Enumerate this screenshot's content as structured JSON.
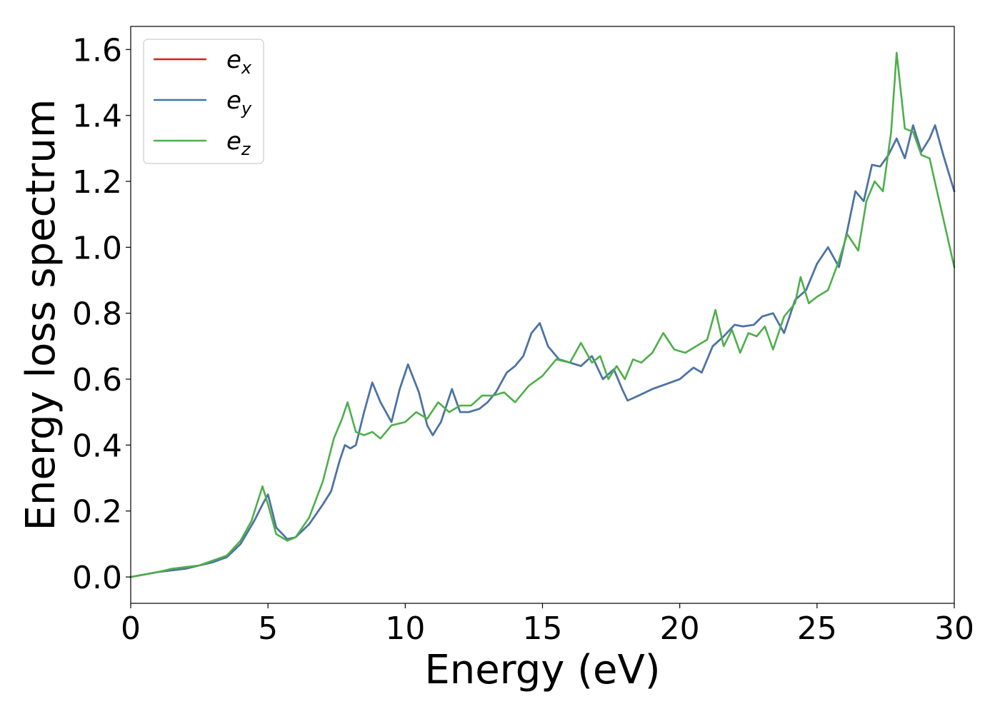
{
  "chart_data": {
    "type": "line",
    "xlabel": "Energy (eV)",
    "ylabel": "Energy loss spectrum",
    "xlim": [
      0,
      30
    ],
    "ylim": [
      -0.08,
      1.67
    ],
    "xticks": [
      0,
      5,
      10,
      15,
      20,
      25,
      30
    ],
    "yticks": [
      0.0,
      0.2,
      0.4,
      0.6,
      0.8,
      1.0,
      1.2,
      1.4,
      1.6
    ],
    "xtick_labels": [
      "0",
      "5",
      "10",
      "15",
      "20",
      "25",
      "30"
    ],
    "ytick_labels": [
      "0.0",
      "0.2",
      "0.4",
      "0.6",
      "0.8",
      "1.0",
      "1.2",
      "1.4",
      "1.6"
    ],
    "grid": false,
    "legend_position": "top-left",
    "series": [
      {
        "name": "e_x",
        "legend_base": "e",
        "legend_sub": "x",
        "color": "#e41a1c",
        "x": [
          0,
          1,
          2,
          3,
          3.5,
          4,
          4.5,
          4.8,
          5.0,
          5.3,
          5.7,
          6.0,
          6.5,
          7.0,
          7.3,
          7.6,
          7.8,
          8.0,
          8.2,
          8.5,
          8.8,
          9.1,
          9.5,
          9.8,
          10.1,
          10.5,
          10.8,
          11.0,
          11.3,
          11.7,
          12.0,
          12.3,
          12.7,
          13.0,
          13.3,
          13.7,
          14.0,
          14.3,
          14.6,
          14.9,
          15.2,
          15.6,
          16.0,
          16.4,
          16.8,
          17.2,
          17.6,
          17.9,
          18.1,
          18.5,
          19.0,
          19.5,
          20.0,
          20.5,
          20.8,
          21.2,
          21.6,
          22.0,
          22.3,
          22.7,
          23.0,
          23.4,
          23.8,
          24.2,
          24.6,
          25.0,
          25.4,
          25.8,
          26.1,
          26.4,
          26.7,
          27.0,
          27.3,
          27.6,
          27.9,
          28.2,
          28.5,
          28.8,
          29.1,
          29.3,
          29.6,
          30.0
        ],
        "values": [
          0.0,
          0.015,
          0.025,
          0.045,
          0.06,
          0.1,
          0.17,
          0.22,
          0.25,
          0.15,
          0.115,
          0.12,
          0.16,
          0.22,
          0.26,
          0.35,
          0.4,
          0.39,
          0.4,
          0.5,
          0.59,
          0.53,
          0.47,
          0.57,
          0.645,
          0.56,
          0.46,
          0.43,
          0.47,
          0.57,
          0.5,
          0.5,
          0.51,
          0.53,
          0.56,
          0.62,
          0.64,
          0.67,
          0.74,
          0.77,
          0.7,
          0.66,
          0.65,
          0.64,
          0.67,
          0.6,
          0.63,
          0.57,
          0.535,
          0.55,
          0.57,
          0.585,
          0.6,
          0.635,
          0.62,
          0.7,
          0.73,
          0.765,
          0.76,
          0.765,
          0.79,
          0.8,
          0.74,
          0.84,
          0.87,
          0.95,
          1.0,
          0.94,
          1.05,
          1.17,
          1.14,
          1.25,
          1.245,
          1.28,
          1.33,
          1.27,
          1.37,
          1.29,
          1.33,
          1.37,
          1.28,
          1.17
        ]
      },
      {
        "name": "e_y",
        "legend_base": "e",
        "legend_sub": "y",
        "color": "#4477aa",
        "x": [
          0,
          1,
          2,
          3,
          3.5,
          4,
          4.5,
          4.8,
          5.0,
          5.3,
          5.7,
          6.0,
          6.5,
          7.0,
          7.3,
          7.6,
          7.8,
          8.0,
          8.2,
          8.5,
          8.8,
          9.1,
          9.5,
          9.8,
          10.1,
          10.5,
          10.8,
          11.0,
          11.3,
          11.7,
          12.0,
          12.3,
          12.7,
          13.0,
          13.3,
          13.7,
          14.0,
          14.3,
          14.6,
          14.9,
          15.2,
          15.6,
          16.0,
          16.4,
          16.8,
          17.2,
          17.6,
          17.9,
          18.1,
          18.5,
          19.0,
          19.5,
          20.0,
          20.5,
          20.8,
          21.2,
          21.6,
          22.0,
          22.3,
          22.7,
          23.0,
          23.4,
          23.8,
          24.2,
          24.6,
          25.0,
          25.4,
          25.8,
          26.1,
          26.4,
          26.7,
          27.0,
          27.3,
          27.6,
          27.9,
          28.2,
          28.5,
          28.8,
          29.1,
          29.3,
          29.6,
          30.0
        ],
        "values": [
          0.0,
          0.015,
          0.025,
          0.045,
          0.06,
          0.1,
          0.17,
          0.22,
          0.25,
          0.15,
          0.115,
          0.12,
          0.16,
          0.22,
          0.26,
          0.35,
          0.4,
          0.39,
          0.4,
          0.5,
          0.59,
          0.53,
          0.47,
          0.57,
          0.645,
          0.56,
          0.46,
          0.43,
          0.47,
          0.57,
          0.5,
          0.5,
          0.51,
          0.53,
          0.56,
          0.62,
          0.64,
          0.67,
          0.74,
          0.77,
          0.7,
          0.66,
          0.65,
          0.64,
          0.67,
          0.6,
          0.63,
          0.57,
          0.535,
          0.55,
          0.57,
          0.585,
          0.6,
          0.635,
          0.62,
          0.7,
          0.73,
          0.765,
          0.76,
          0.765,
          0.79,
          0.8,
          0.74,
          0.84,
          0.87,
          0.95,
          1.0,
          0.94,
          1.05,
          1.17,
          1.14,
          1.25,
          1.245,
          1.28,
          1.33,
          1.27,
          1.37,
          1.29,
          1.33,
          1.37,
          1.28,
          1.17
        ]
      },
      {
        "name": "e_z",
        "legend_base": "e",
        "legend_sub": "z",
        "color": "#4daf4a",
        "x": [
          0,
          1,
          1.5,
          2,
          2.5,
          3,
          3.5,
          4,
          4.4,
          4.8,
          5.0,
          5.3,
          5.7,
          6.0,
          6.5,
          7.0,
          7.4,
          7.7,
          7.9,
          8.2,
          8.5,
          8.8,
          9.1,
          9.5,
          10.0,
          10.4,
          10.8,
          11.2,
          11.6,
          12.0,
          12.4,
          12.8,
          13.2,
          13.6,
          14.0,
          14.5,
          15.0,
          15.5,
          16.0,
          16.4,
          16.8,
          17.1,
          17.4,
          17.7,
          18.0,
          18.3,
          18.6,
          19.0,
          19.4,
          19.8,
          20.2,
          20.6,
          21.0,
          21.3,
          21.6,
          21.9,
          22.2,
          22.5,
          22.8,
          23.1,
          23.4,
          23.8,
          24.2,
          24.4,
          24.7,
          25.0,
          25.4,
          25.8,
          26.1,
          26.5,
          26.8,
          27.1,
          27.4,
          27.7,
          27.9,
          28.2,
          28.5,
          28.8,
          29.1,
          29.4,
          29.7,
          30.0
        ],
        "values": [
          0.0,
          0.015,
          0.025,
          0.03,
          0.035,
          0.05,
          0.065,
          0.11,
          0.17,
          0.275,
          0.22,
          0.13,
          0.11,
          0.12,
          0.18,
          0.29,
          0.42,
          0.48,
          0.53,
          0.44,
          0.43,
          0.44,
          0.42,
          0.46,
          0.47,
          0.5,
          0.48,
          0.53,
          0.5,
          0.52,
          0.52,
          0.55,
          0.55,
          0.56,
          0.53,
          0.58,
          0.61,
          0.66,
          0.65,
          0.71,
          0.65,
          0.67,
          0.6,
          0.64,
          0.6,
          0.66,
          0.65,
          0.68,
          0.74,
          0.69,
          0.68,
          0.7,
          0.72,
          0.81,
          0.7,
          0.75,
          0.68,
          0.74,
          0.73,
          0.76,
          0.69,
          0.79,
          0.83,
          0.91,
          0.83,
          0.85,
          0.87,
          0.96,
          1.04,
          0.99,
          1.14,
          1.2,
          1.17,
          1.35,
          1.59,
          1.36,
          1.35,
          1.28,
          1.27,
          1.16,
          1.05,
          0.94
        ]
      }
    ]
  }
}
